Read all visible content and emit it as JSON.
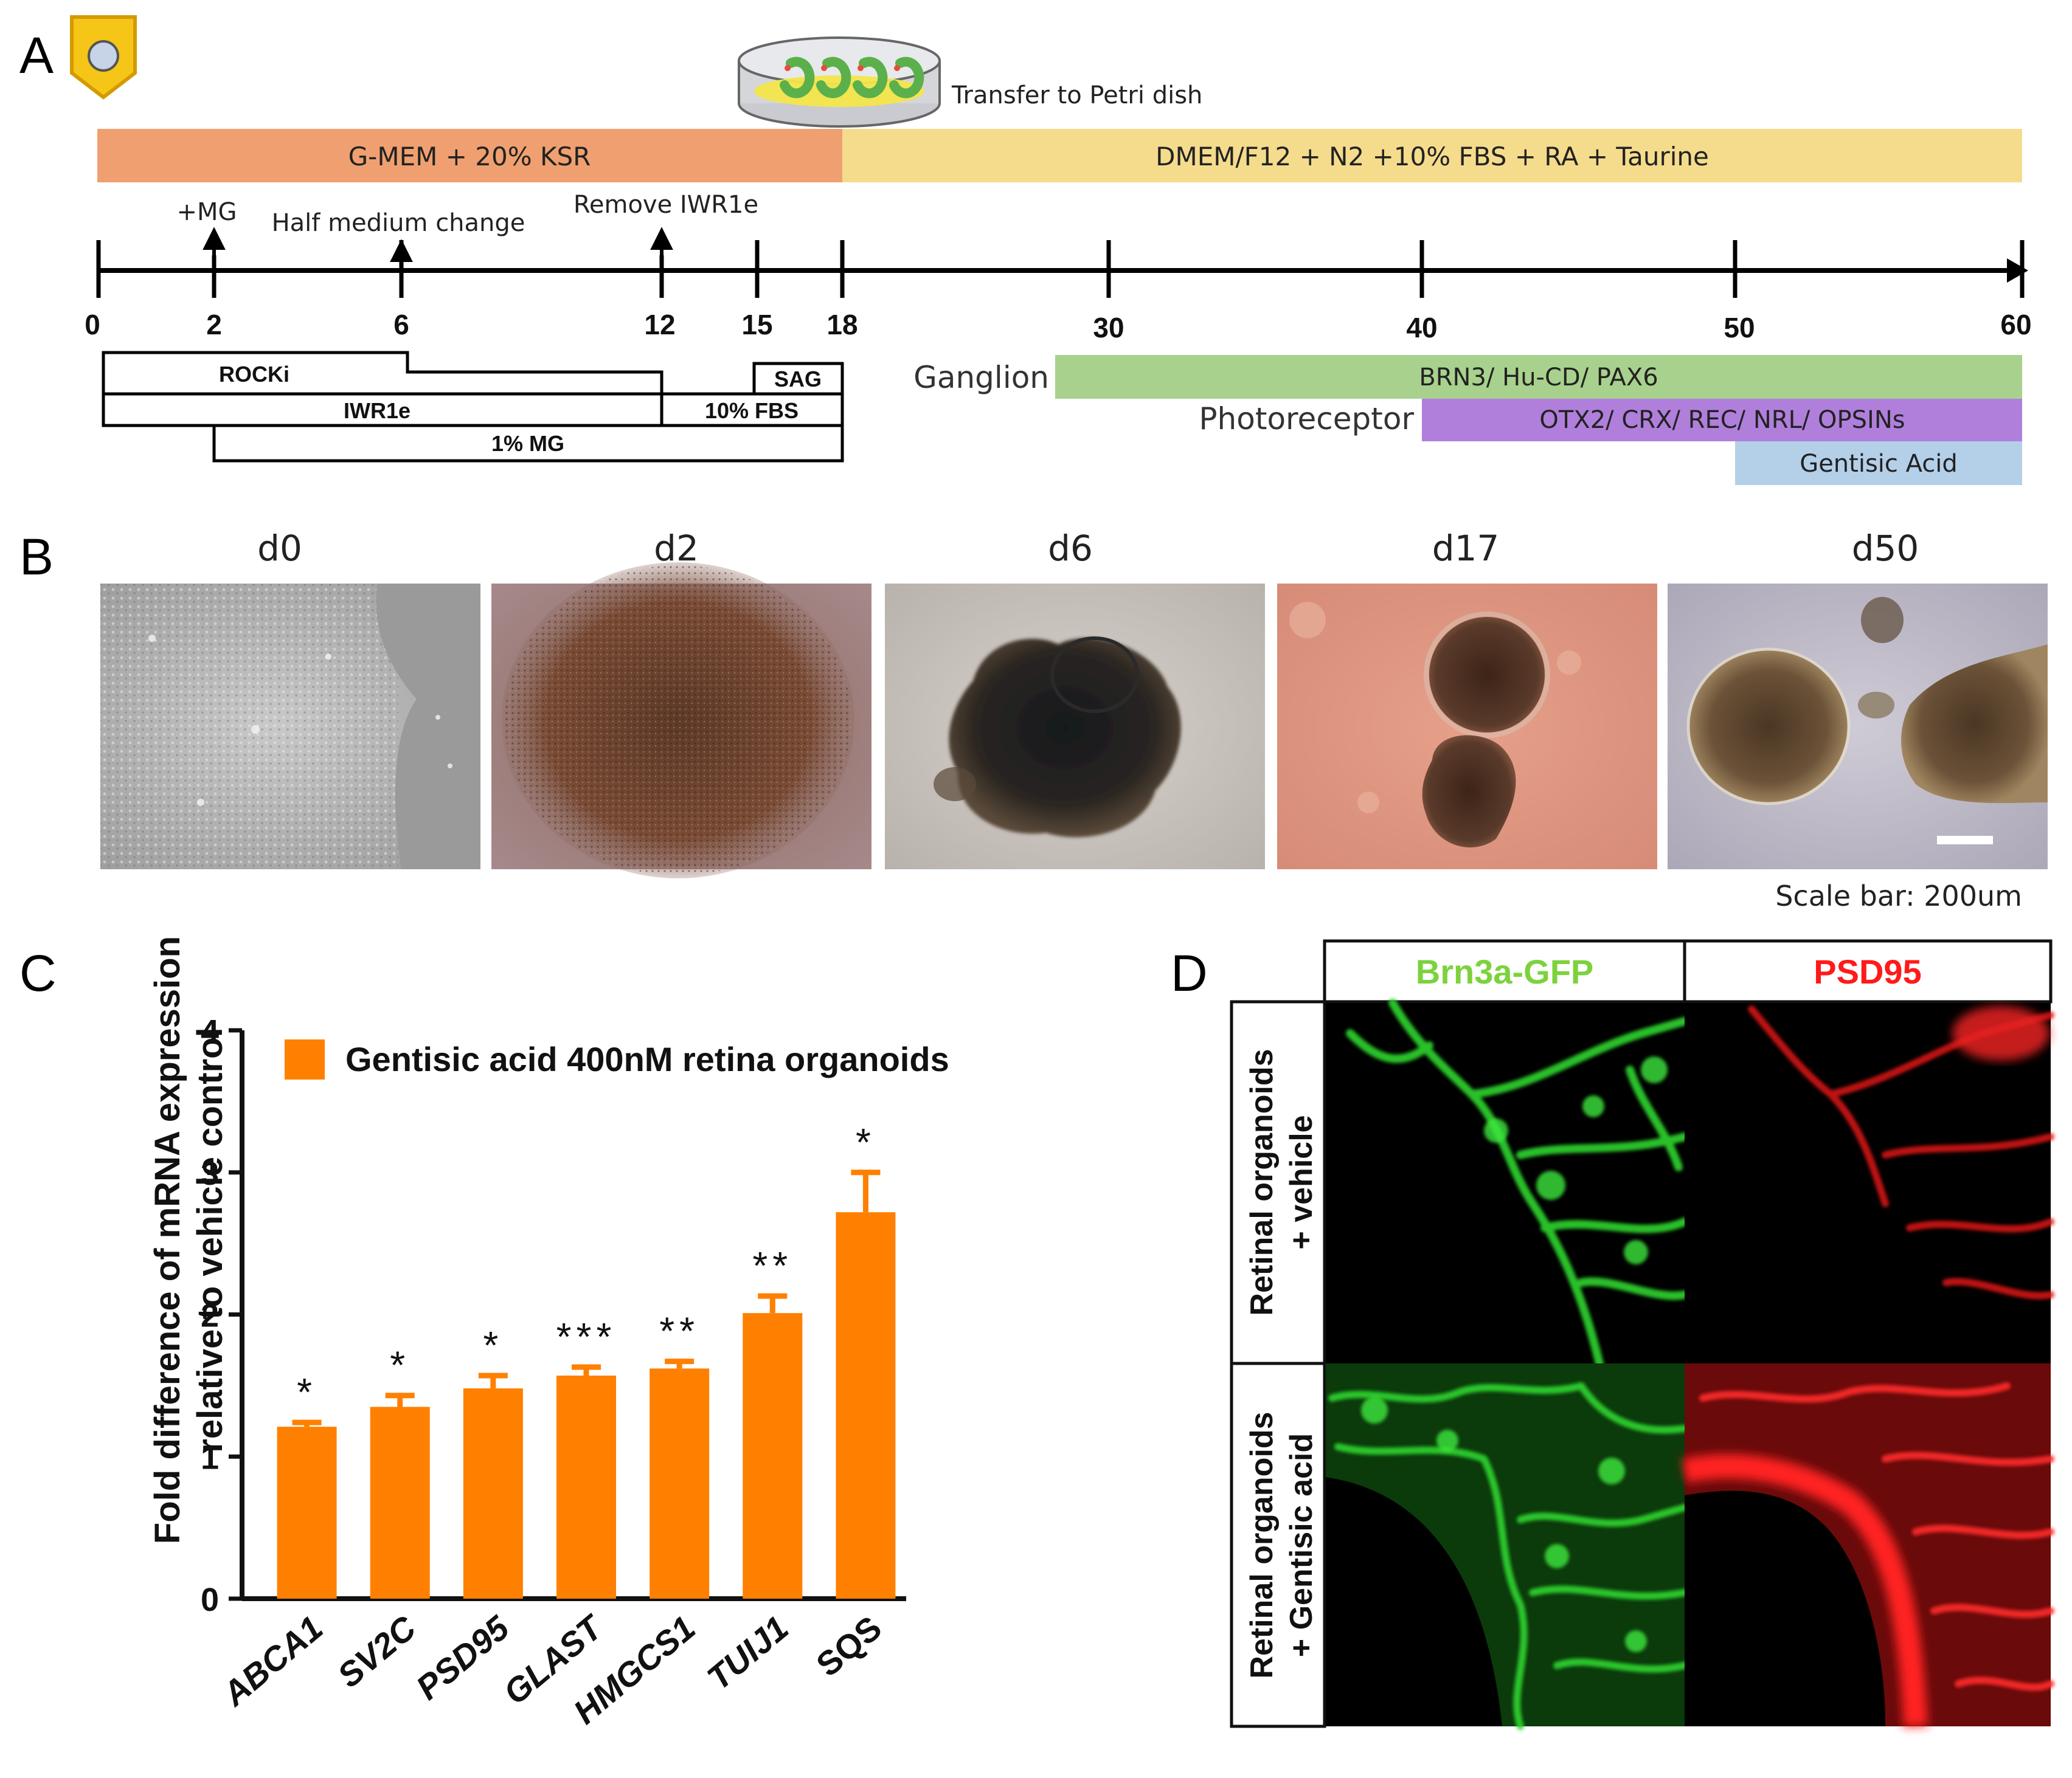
{
  "panelA": {
    "letter": "A",
    "dish_label": "Transfer to Petri dish",
    "media": [
      {
        "label": "G-MEM + 20% KSR",
        "color": "#f0a070"
      },
      {
        "label": "DMEM/F12 + N2 +10% FBS + RA + Taurine",
        "color": "#f5dc8c"
      }
    ],
    "events": [
      "+MG",
      "Half medium change",
      "Remove IWR1e"
    ],
    "ticks": [
      "0",
      "2",
      "6",
      "12",
      "15",
      "18",
      "30",
      "40",
      "50",
      "60"
    ],
    "treatments": {
      "rocki": "ROCKi",
      "sag": "SAG",
      "iwr1e": "IWR1e",
      "fbs": "10% FBS",
      "mg": "1% MG"
    },
    "ganglion": {
      "label": "Ganglion",
      "markers": "BRN3/ Hu-CD/ PAX6",
      "color": "#a9d18e"
    },
    "photoreceptor": {
      "label": "Photoreceptor",
      "markers": "OTX2/ CRX/ REC/ NRL/ OPSINs",
      "color": "#b07fdc"
    },
    "gentisic": {
      "label": "Gentisic Acid",
      "color": "#b4cfe8"
    }
  },
  "panelB": {
    "letter": "B",
    "days": [
      "d0",
      "d2",
      "d6",
      "d17",
      "d50"
    ],
    "scale_note": "Scale bar: 200um"
  },
  "panelC": {
    "letter": "C",
    "legend": "Gentisic acid 400nM retina organoids",
    "bar_color": "#ff8000"
  },
  "panelD": {
    "letter": "D",
    "col_headers": [
      "Brn3a-GFP",
      "PSD95"
    ],
    "header_colors": [
      "#7cd23c",
      "#ff1a1a"
    ],
    "row1": [
      "Retinal organoids",
      "+ vehicle"
    ],
    "row2": [
      "Retinal organoids",
      "+ Gentisic acid"
    ]
  },
  "chart_data": {
    "type": "bar",
    "categories": [
      "ABCA1",
      "SV2C",
      "PSD95",
      "GLAST",
      "HMGCS1",
      "TUIJ1",
      "SQS"
    ],
    "series": [
      {
        "name": "Gentisic acid 400nM retina organoids",
        "values": [
          1.21,
          1.35,
          1.48,
          1.57,
          1.62,
          2.01,
          2.72
        ],
        "errors": [
          0.03,
          0.08,
          0.09,
          0.06,
          0.05,
          0.12,
          0.28
        ]
      }
    ],
    "significance": [
      "*",
      "*",
      "*",
      "***",
      "**",
      "**",
      "*"
    ],
    "ylabel": "Fold difference of mRNA expression relative to vehicle control",
    "xlabel": "",
    "ylim": [
      0,
      4
    ],
    "yticks": [
      "0",
      "1",
      "2",
      "3",
      "4"
    ],
    "grid": false,
    "legend_position": "top"
  }
}
